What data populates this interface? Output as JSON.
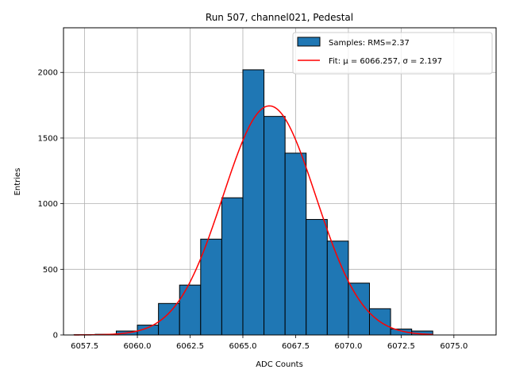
{
  "chart_data": {
    "type": "bar",
    "title": "Run 507, channel021, Pedestal",
    "xlabel": "ADC Counts",
    "ylabel": "Entries",
    "xlim": [
      6056.5,
      6077
    ],
    "ylim": [
      0,
      2340
    ],
    "grid": true,
    "legend_position": "top-right",
    "x_ticks": [
      6057.5,
      6060.0,
      6062.5,
      6065.0,
      6067.5,
      6070.0,
      6072.5,
      6075.0
    ],
    "x_tick_labels": [
      "6057.5",
      "6060.0",
      "6062.5",
      "6065.0",
      "6067.5",
      "6070.0",
      "6072.5",
      "6075.0"
    ],
    "y_ticks": [
      0,
      500,
      1000,
      1500,
      2000
    ],
    "y_tick_labels": [
      "0",
      "500",
      "1000",
      "1500",
      "2000"
    ],
    "histogram": {
      "name": "Samples: RMS=2.37",
      "color": "#1f77b4",
      "edge_color": "#000000",
      "bin_edges": [
        6057,
        6058,
        6059,
        6060,
        6061,
        6062,
        6063,
        6064,
        6065,
        6066,
        6067,
        6068,
        6069,
        6070,
        6071,
        6072,
        6073,
        6074
      ],
      "counts": [
        2,
        5,
        30,
        75,
        240,
        380,
        730,
        1045,
        2020,
        1665,
        1385,
        880,
        715,
        395,
        200,
        45,
        30
      ]
    },
    "fit": {
      "name": "Fit: μ = 6066.257, σ = 2.197",
      "color": "#ff0000",
      "mu": 6066.257,
      "sigma": 2.197,
      "amplitude": 1745,
      "x_range": [
        6057,
        6074
      ]
    }
  }
}
